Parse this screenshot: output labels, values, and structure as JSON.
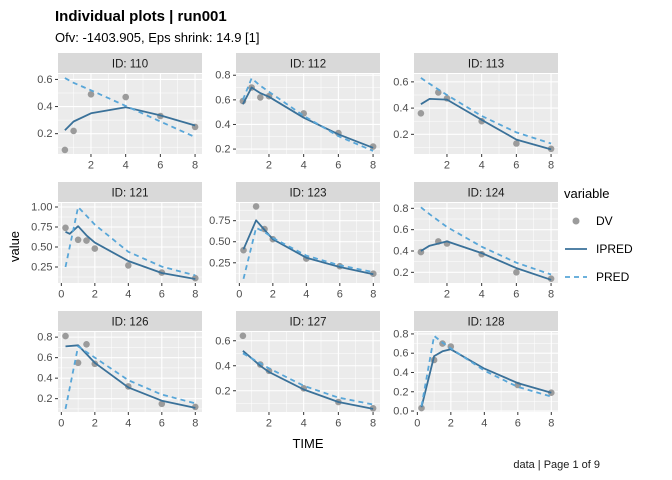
{
  "header": {
    "title": "Individual plots | run001",
    "subtitle": "Ofv: -1403.905, Eps shrink: 14.9 [1]"
  },
  "axes": {
    "x_label": "TIME",
    "y_label": "value"
  },
  "legend": {
    "title": "variable",
    "items": [
      {
        "label": "DV",
        "type": "point"
      },
      {
        "label": "IPRED",
        "type": "solid-line"
      },
      {
        "label": "PRED",
        "type": "dashed-line"
      }
    ]
  },
  "caption": "data | Page 1 of 9",
  "colors": {
    "dv": "#9b9b9b",
    "ipred": "#3a7199",
    "pred": "#58a6d8",
    "panel_bg": "#ebebeb",
    "strip_bg": "#d9d9d9",
    "grid": "#ffffff",
    "tick_text": "#4d4d4d",
    "axis_tick": "#333333"
  },
  "chart_data": {
    "type": "line",
    "x_label": "TIME",
    "y_label": "value",
    "legend_entries": [
      "DV",
      "IPRED",
      "PRED"
    ],
    "layout": "3x3 facets, free x and y scales, grid on, legend right",
    "facets": [
      {
        "id": "ID: 110",
        "x_ticks": [
          "2",
          "4",
          "6",
          "8"
        ],
        "y_ticks": [
          "0.2",
          "0.4",
          "0.6"
        ],
        "xlim": [
          0.1,
          8.4
        ],
        "ylim": [
          0.05,
          0.64
        ],
        "DV": [
          [
            0.5,
            0.08
          ],
          [
            1,
            0.22
          ],
          [
            2,
            0.49
          ],
          [
            4,
            0.47
          ],
          [
            6,
            0.33
          ],
          [
            8,
            0.25
          ]
        ],
        "IPRED": [
          [
            0.5,
            0.225
          ],
          [
            1,
            0.29
          ],
          [
            2,
            0.35
          ],
          [
            4,
            0.395
          ],
          [
            6,
            0.335
          ],
          [
            8,
            0.26
          ]
        ],
        "PRED": [
          [
            0.5,
            0.61
          ],
          [
            1,
            0.575
          ],
          [
            2,
            0.52
          ],
          [
            4,
            0.405
          ],
          [
            6,
            0.29
          ],
          [
            8,
            0.175
          ]
        ]
      },
      {
        "id": "ID: 112",
        "x_ticks": [
          "2",
          "4",
          "6",
          "8"
        ],
        "y_ticks": [
          "0.2",
          "0.4",
          "0.6",
          "0.8"
        ],
        "xlim": [
          0.1,
          8.4
        ],
        "ylim": [
          0.16,
          0.81
        ],
        "DV": [
          [
            0.5,
            0.59
          ],
          [
            1,
            0.7
          ],
          [
            1.5,
            0.62
          ],
          [
            2,
            0.63
          ],
          [
            4,
            0.49
          ],
          [
            6,
            0.33
          ],
          [
            8,
            0.22
          ]
        ],
        "IPRED": [
          [
            0.5,
            0.565
          ],
          [
            1,
            0.7
          ],
          [
            1.5,
            0.655
          ],
          [
            2,
            0.625
          ],
          [
            4,
            0.455
          ],
          [
            6,
            0.32
          ],
          [
            8,
            0.21
          ]
        ],
        "PRED": [
          [
            0.5,
            0.6
          ],
          [
            1,
            0.775
          ],
          [
            1.5,
            0.715
          ],
          [
            2,
            0.665
          ],
          [
            4,
            0.47
          ],
          [
            6,
            0.305
          ],
          [
            8,
            0.185
          ]
        ]
      },
      {
        "id": "ID: 113",
        "x_ticks": [
          "2",
          "4",
          "6",
          "8"
        ],
        "y_ticks": [
          "0.2",
          "0.4",
          "0.6"
        ],
        "xlim": [
          0.1,
          8.4
        ],
        "ylim": [
          0.05,
          0.66
        ],
        "DV": [
          [
            0.5,
            0.36
          ],
          [
            1.5,
            0.52
          ],
          [
            2,
            0.475
          ],
          [
            4,
            0.3
          ],
          [
            6,
            0.13
          ],
          [
            8,
            0.09
          ]
        ],
        "IPRED": [
          [
            0.5,
            0.43
          ],
          [
            1,
            0.47
          ],
          [
            2,
            0.465
          ],
          [
            4,
            0.31
          ],
          [
            6,
            0.16
          ],
          [
            8,
            0.085
          ]
        ],
        "PRED": [
          [
            0.5,
            0.63
          ],
          [
            1,
            0.585
          ],
          [
            2,
            0.5
          ],
          [
            4,
            0.34
          ],
          [
            6,
            0.215
          ],
          [
            8,
            0.13
          ]
        ]
      },
      {
        "id": "ID: 121",
        "x_ticks": [
          "0",
          "2",
          "4",
          "6",
          "8"
        ],
        "y_ticks": [
          "0.25",
          "0.50",
          "0.75",
          "1.00"
        ],
        "xlim": [
          -0.2,
          8.4
        ],
        "ylim": [
          0.05,
          1.05
        ],
        "DV": [
          [
            0.25,
            0.74
          ],
          [
            1,
            0.59
          ],
          [
            1.5,
            0.58
          ],
          [
            2,
            0.48
          ],
          [
            4,
            0.27
          ],
          [
            6,
            0.18
          ],
          [
            8,
            0.11
          ]
        ],
        "IPRED": [
          [
            0.25,
            0.69
          ],
          [
            0.5,
            0.665
          ],
          [
            1,
            0.76
          ],
          [
            1.5,
            0.645
          ],
          [
            2,
            0.555
          ],
          [
            4,
            0.325
          ],
          [
            6,
            0.175
          ],
          [
            8,
            0.1
          ]
        ],
        "PRED": [
          [
            0.25,
            0.25
          ],
          [
            1,
            1.0
          ],
          [
            1.5,
            0.89
          ],
          [
            2,
            0.78
          ],
          [
            4,
            0.44
          ],
          [
            6,
            0.255
          ],
          [
            8,
            0.145
          ]
        ]
      },
      {
        "id": "ID: 123",
        "x_ticks": [
          "0",
          "2",
          "4",
          "6",
          "8"
        ],
        "y_ticks": [
          "0.25",
          "0.50",
          "0.75"
        ],
        "xlim": [
          -0.2,
          8.4
        ],
        "ylim": [
          0.01,
          0.96
        ],
        "DV": [
          [
            0.25,
            0.4
          ],
          [
            1,
            0.92
          ],
          [
            1.5,
            0.65
          ],
          [
            2,
            0.53
          ],
          [
            4,
            0.3
          ],
          [
            6,
            0.21
          ],
          [
            8,
            0.12
          ]
        ],
        "IPRED": [
          [
            0.25,
            0.41
          ],
          [
            1,
            0.755
          ],
          [
            1.5,
            0.64
          ],
          [
            2,
            0.53
          ],
          [
            4,
            0.31
          ],
          [
            6,
            0.2
          ],
          [
            8,
            0.115
          ]
        ],
        "PRED": [
          [
            0.25,
            0.06
          ],
          [
            1,
            0.665
          ],
          [
            1.5,
            0.615
          ],
          [
            2,
            0.545
          ],
          [
            4,
            0.335
          ],
          [
            6,
            0.22
          ],
          [
            8,
            0.14
          ]
        ]
      },
      {
        "id": "ID: 124",
        "x_ticks": [
          "2",
          "4",
          "6",
          "8"
        ],
        "y_ticks": [
          "0.2",
          "0.4",
          "0.6",
          "0.8"
        ],
        "xlim": [
          0.1,
          8.4
        ],
        "ylim": [
          0.1,
          0.85
        ],
        "DV": [
          [
            0.5,
            0.39
          ],
          [
            1.5,
            0.49
          ],
          [
            2,
            0.47
          ],
          [
            4,
            0.37
          ],
          [
            6,
            0.2
          ],
          [
            8,
            0.14
          ]
        ],
        "IPRED": [
          [
            0.5,
            0.4
          ],
          [
            1,
            0.45
          ],
          [
            2,
            0.49
          ],
          [
            4,
            0.38
          ],
          [
            6,
            0.24
          ],
          [
            8,
            0.13
          ]
        ],
        "PRED": [
          [
            0.5,
            0.81
          ],
          [
            1,
            0.745
          ],
          [
            2,
            0.625
          ],
          [
            4,
            0.44
          ],
          [
            6,
            0.29
          ],
          [
            8,
            0.18
          ]
        ]
      },
      {
        "id": "ID: 126",
        "x_ticks": [
          "0",
          "2",
          "4",
          "6",
          "8"
        ],
        "y_ticks": [
          "0.2",
          "0.4",
          "0.6",
          "0.8"
        ],
        "xlim": [
          -0.2,
          8.4
        ],
        "ylim": [
          0.07,
          0.85
        ],
        "DV": [
          [
            0.25,
            0.81
          ],
          [
            1,
            0.55
          ],
          [
            1.5,
            0.73
          ],
          [
            2,
            0.54
          ],
          [
            4,
            0.32
          ],
          [
            6,
            0.15
          ],
          [
            8,
            0.12
          ]
        ],
        "IPRED": [
          [
            0.25,
            0.71
          ],
          [
            1,
            0.72
          ],
          [
            2,
            0.55
          ],
          [
            4,
            0.31
          ],
          [
            6,
            0.18
          ],
          [
            8,
            0.11
          ]
        ],
        "PRED": [
          [
            0.25,
            0.1
          ],
          [
            1,
            0.71
          ],
          [
            2,
            0.6
          ],
          [
            4,
            0.38
          ],
          [
            6,
            0.24
          ],
          [
            8,
            0.155
          ]
        ]
      },
      {
        "id": "ID: 127",
        "x_ticks": [
          "2",
          "4",
          "6",
          "8"
        ],
        "y_ticks": [
          "0.2",
          "0.4",
          "0.6"
        ],
        "xlim": [
          0.1,
          8.4
        ],
        "ylim": [
          0.03,
          0.67
        ],
        "DV": [
          [
            0.5,
            0.64
          ],
          [
            1.5,
            0.41
          ],
          [
            2,
            0.36
          ],
          [
            4,
            0.22
          ],
          [
            6,
            0.11
          ],
          [
            8,
            0.06
          ]
        ],
        "IPRED": [
          [
            0.5,
            0.52
          ],
          [
            1.5,
            0.4
          ],
          [
            2,
            0.35
          ],
          [
            4,
            0.21
          ],
          [
            6,
            0.11
          ],
          [
            8,
            0.055
          ]
        ],
        "PRED": [
          [
            0.5,
            0.5
          ],
          [
            1.5,
            0.42
          ],
          [
            2,
            0.38
          ],
          [
            4,
            0.24
          ],
          [
            6,
            0.145
          ],
          [
            8,
            0.09
          ]
        ]
      },
      {
        "id": "ID: 128",
        "x_ticks": [
          "0",
          "2",
          "4",
          "6",
          "8"
        ],
        "y_ticks": [
          "0.0",
          "0.2",
          "0.4",
          "0.6",
          "0.8"
        ],
        "xlim": [
          -0.2,
          8.4
        ],
        "ylim": [
          -0.01,
          0.82
        ],
        "DV": [
          [
            0.25,
            0.03
          ],
          [
            1,
            0.53
          ],
          [
            1.5,
            0.7
          ],
          [
            2,
            0.67
          ],
          [
            6,
            0.27
          ],
          [
            8,
            0.19
          ]
        ],
        "IPRED": [
          [
            0.25,
            0.04
          ],
          [
            1,
            0.57
          ],
          [
            1.5,
            0.62
          ],
          [
            2,
            0.64
          ],
          [
            4,
            0.44
          ],
          [
            6,
            0.29
          ],
          [
            8,
            0.19
          ]
        ],
        "PRED": [
          [
            0.25,
            0.05
          ],
          [
            1,
            0.78
          ],
          [
            1.5,
            0.71
          ],
          [
            2,
            0.65
          ],
          [
            4,
            0.42
          ],
          [
            6,
            0.25
          ],
          [
            8,
            0.15
          ]
        ]
      }
    ]
  }
}
